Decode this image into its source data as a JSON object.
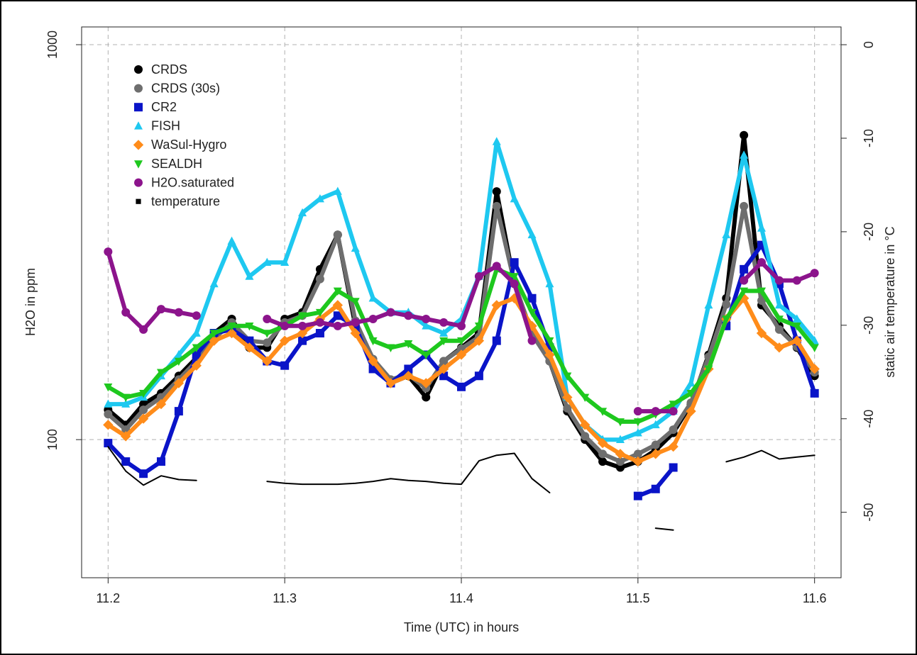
{
  "chart_data": {
    "type": "scatter",
    "x_label": "Time (UTC) in hours",
    "y_label": "H2O in ppm",
    "y2_label": "static air temperature in °C",
    "x": [
      11.2,
      11.21,
      11.22,
      11.23,
      11.24,
      11.25,
      11.26,
      11.27,
      11.28,
      11.29,
      11.3,
      11.31,
      11.32,
      11.33,
      11.34,
      11.35,
      11.36,
      11.37,
      11.38,
      11.39,
      11.4,
      11.41,
      11.42,
      11.43,
      11.44,
      11.45,
      11.46,
      11.47,
      11.48,
      11.49,
      11.5,
      11.51,
      11.52,
      11.53,
      11.54,
      11.55,
      11.56,
      11.57,
      11.58,
      11.59,
      11.6
    ],
    "xlim": [
      11.185,
      11.615
    ],
    "xticks": [
      11.2,
      11.3,
      11.4,
      11.5,
      11.6
    ],
    "ylim": [
      44.7,
      1109
    ],
    "yticks": [
      100,
      1000
    ],
    "log_y": true,
    "y2lim": [
      -57,
      1.9
    ],
    "y2ticks": [
      0,
      -10,
      -20,
      -30,
      -40,
      -50
    ],
    "grid": true,
    "legend": "top-left",
    "series": [
      {
        "name": "CRDS",
        "color": "#000000",
        "marker": "circle",
        "values": [
          119,
          109,
          123,
          131,
          145,
          161,
          186,
          202,
          171,
          171,
          202,
          210,
          270,
          330,
          194,
          158,
          139,
          145,
          128,
          158,
          171,
          186,
          425,
          248,
          186,
          158,
          118,
          100,
          88,
          85,
          88,
          94,
          104,
          123,
          164,
          228,
          590,
          219,
          194,
          171,
          145
        ]
      },
      {
        "name": "CRDS (30s)",
        "color": "#6e6e6e",
        "marker": "circle",
        "values": [
          116,
          106,
          119,
          128,
          142,
          158,
          180,
          198,
          178,
          176,
          198,
          206,
          255,
          330,
          200,
          160,
          142,
          146,
          135,
          158,
          170,
          182,
          390,
          250,
          185,
          158,
          120,
          102,
          92,
          88,
          92,
          97,
          106,
          124,
          162,
          220,
          390,
          225,
          190,
          172,
          148
        ]
      },
      {
        "name": "CR2",
        "color": "#0a14c8",
        "marker": "square",
        "values": [
          98,
          88,
          82,
          88,
          118,
          164,
          186,
          190,
          178,
          158,
          154,
          178,
          186,
          206,
          194,
          151,
          139,
          151,
          164,
          145,
          136,
          145,
          178,
          281,
          228,
          171,
          null,
          null,
          null,
          null,
          72,
          75,
          85,
          null,
          null,
          194,
          270,
          311,
          248,
          178,
          131
        ]
      },
      {
        "name": "FISH",
        "color": "#1ec8f0",
        "marker": "triangle",
        "values": [
          123,
          123,
          128,
          145,
          164,
          186,
          248,
          318,
          259,
          281,
          281,
          375,
          407,
          425,
          305,
          228,
          210,
          210,
          194,
          186,
          202,
          259,
          568,
          407,
          330,
          248,
          128,
          109,
          100,
          100,
          104,
          109,
          118,
          139,
          219,
          330,
          525,
          343,
          219,
          202,
          178
        ]
      },
      {
        "name": "WaSul-Hygro",
        "color": "#ff8c1a",
        "marker": "diamond",
        "values": [
          109,
          102,
          113,
          123,
          139,
          154,
          178,
          186,
          171,
          158,
          178,
          186,
          202,
          219,
          186,
          158,
          139,
          145,
          139,
          151,
          164,
          178,
          219,
          228,
          194,
          164,
          128,
          109,
          98,
          92,
          88,
          92,
          96,
          118,
          151,
          202,
          228,
          186,
          171,
          178,
          151
        ]
      },
      {
        "name": "SEALDH",
        "color": "#1ec81e",
        "marker": "triangle-down",
        "values": [
          136,
          128,
          131,
          148,
          158,
          171,
          186,
          194,
          194,
          186,
          194,
          206,
          210,
          238,
          224,
          178,
          171,
          175,
          164,
          178,
          178,
          194,
          270,
          259,
          210,
          178,
          145,
          128,
          118,
          111,
          111,
          116,
          123,
          131,
          151,
          202,
          238,
          238,
          202,
          194,
          171
        ]
      },
      {
        "name": "H2O.saturated",
        "color": "#8c148c",
        "marker": "circle",
        "values": [
          299,
          210,
          190,
          214,
          210,
          206,
          null,
          null,
          null,
          202,
          194,
          194,
          198,
          194,
          198,
          202,
          210,
          206,
          202,
          198,
          194,
          259,
          275,
          248,
          178,
          null,
          null,
          null,
          null,
          null,
          118,
          118,
          118,
          null,
          null,
          null,
          253,
          281,
          253,
          253,
          264
        ]
      },
      {
        "name": "temperature",
        "color": "#000000",
        "marker": "line",
        "axis": "y2",
        "values": [
          -43,
          -45.6,
          -47.1,
          -46.1,
          -46.5,
          -46.6,
          null,
          null,
          null,
          -46.7,
          -46.9,
          -47,
          -47,
          -47,
          -46.9,
          -46.7,
          -46.4,
          -46.6,
          -46.7,
          -46.9,
          -47,
          -44.5,
          -43.9,
          -43.7,
          -46.4,
          -47.9,
          null,
          null,
          null,
          null,
          null,
          -51.7,
          -51.9,
          null,
          null,
          -44.6,
          -44.1,
          -43.4,
          -44.3,
          -44.1,
          -43.9
        ]
      }
    ]
  }
}
